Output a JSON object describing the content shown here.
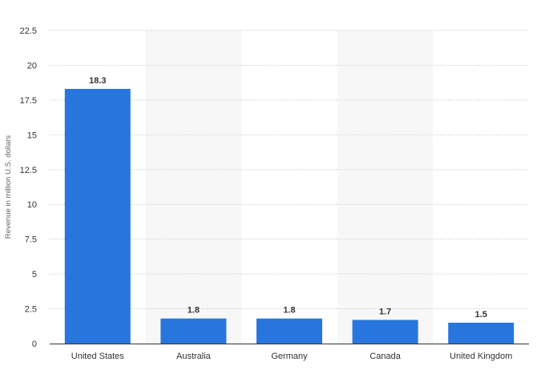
{
  "chart_data": {
    "type": "bar",
    "categories": [
      "United States",
      "Australia",
      "Germany",
      "Canada",
      "United Kingdom"
    ],
    "values": [
      18.3,
      1.8,
      1.8,
      1.7,
      1.5
    ],
    "data_labels": [
      "18.3",
      "1.8",
      "1.8",
      "1.7",
      "1.5"
    ],
    "xlabel": "",
    "ylabel": "Revenue in million U.S. dollars",
    "ylim": [
      0,
      22.5
    ],
    "yticks": [
      0,
      2.5,
      5,
      7.5,
      10,
      12.5,
      15,
      17.5,
      20,
      22.5
    ],
    "ytick_labels": [
      "0",
      "2.5",
      "5",
      "7.5",
      "10",
      "12.5",
      "15",
      "17.5",
      "20",
      "22.5"
    ],
    "grid": true,
    "bar_color": "#2876dd",
    "band_color": "#f7f7f7",
    "grid_color": "#cccccc",
    "axis_color": "#333333"
  }
}
